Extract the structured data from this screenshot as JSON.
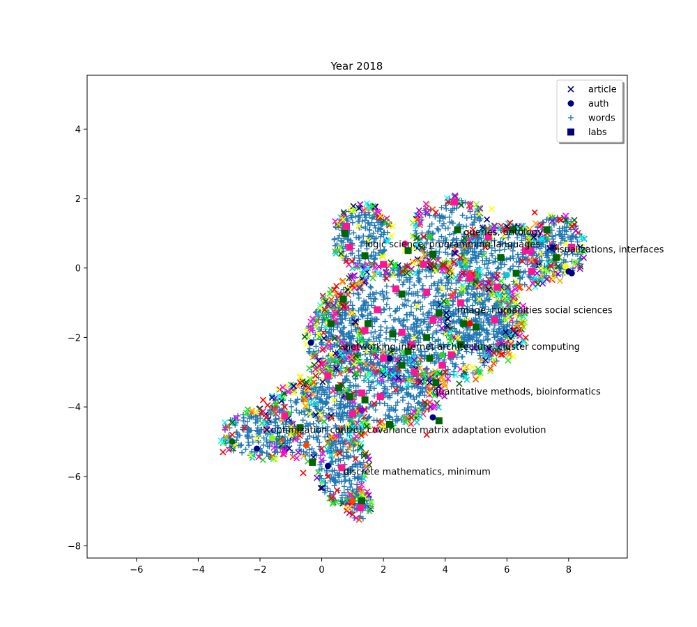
{
  "chart_data": {
    "type": "scatter",
    "title": "Year 2018",
    "xlabel": "",
    "ylabel": "",
    "xlim": [
      -7.6,
      9.9
    ],
    "ylim": [
      -8.35,
      5.55
    ],
    "xticks": [
      -6,
      -4,
      -2,
      0,
      2,
      4,
      6,
      8
    ],
    "yticks": [
      -8,
      -6,
      -4,
      -2,
      0,
      2,
      4
    ],
    "grid": false,
    "legend_position": "top-right",
    "legend": [
      {
        "name": "article",
        "marker": "x",
        "color": "#000080"
      },
      {
        "name": "auth",
        "marker": "circle",
        "color": "#000080"
      },
      {
        "name": "words",
        "marker": "plus",
        "color": "#1f77b4"
      },
      {
        "name": "labs",
        "marker": "square",
        "color": "#000080"
      }
    ],
    "annotations": [
      {
        "text": "queries, ontology",
        "x": 4.6,
        "y": 1.05
      },
      {
        "text": "logic science, programming languages",
        "x": 1.4,
        "y": 0.7
      },
      {
        "text": "visualizations, interfaces",
        "x": 7.45,
        "y": 0.55
      },
      {
        "text": "image, humanities social sciences",
        "x": 4.4,
        "y": -1.2
      },
      {
        "text": "networking internet architecture, cluster computing",
        "x": 0.75,
        "y": -2.25
      },
      {
        "text": "quantitative methods, bioinformatics",
        "x": 3.6,
        "y": -3.55
      },
      {
        "text": "optimization control, covariance matrix adaptation evolution",
        "x": -1.65,
        "y": -4.65
      },
      {
        "text": "discrete mathematics, minimum",
        "x": 0.7,
        "y": -5.85
      }
    ],
    "marker_palette": [
      "#ff0000",
      "#00ff00",
      "#ff00ff",
      "#ffa500",
      "#00ffff",
      "#7fff00",
      "#ff1493",
      "#ffff00",
      "#9400d3",
      "#00ced1",
      "#ff4500",
      "#32cd32",
      "#000080",
      "#006400"
    ],
    "series": [
      {
        "name": "article",
        "marker": "x",
        "points": [
          [
            -3.2,
            -5.3
          ],
          [
            -2.8,
            -5.1
          ],
          [
            -2.5,
            -4.6
          ],
          [
            -2.1,
            -4.9
          ],
          [
            -1.8,
            -4.3
          ],
          [
            -1.5,
            -5.5
          ],
          [
            -1.2,
            -4.0
          ],
          [
            -0.9,
            -3.6
          ],
          [
            -0.6,
            -5.9
          ],
          [
            -0.4,
            -4.2
          ],
          [
            -0.2,
            -3.1
          ],
          [
            -0.1,
            -1.9
          ],
          [
            0.1,
            -1.2
          ],
          [
            0.3,
            -2.5
          ],
          [
            0.5,
            -6.4
          ],
          [
            0.7,
            1.4
          ],
          [
            0.8,
            0.2
          ],
          [
            0.9,
            -6.9
          ],
          [
            1.0,
            -0.5
          ],
          [
            1.2,
            1.2
          ],
          [
            1.3,
            -1.8
          ],
          [
            1.5,
            0.8
          ],
          [
            1.7,
            -3.9
          ],
          [
            1.9,
            1.5
          ],
          [
            2.1,
            -0.3
          ],
          [
            2.3,
            1.2
          ],
          [
            2.5,
            -2.9
          ],
          [
            2.7,
            0.5
          ],
          [
            2.9,
            -4.3
          ],
          [
            3.1,
            -1.1
          ],
          [
            3.3,
            0.9
          ],
          [
            3.5,
            -3.6
          ],
          [
            3.7,
            1.6
          ],
          [
            3.9,
            -0.6
          ],
          [
            4.1,
            1.9
          ],
          [
            4.3,
            -2.4
          ],
          [
            4.5,
            0.3
          ],
          [
            4.7,
            -1.5
          ],
          [
            4.9,
            1.1
          ],
          [
            5.1,
            -0.9
          ],
          [
            5.3,
            0.6
          ],
          [
            5.5,
            1.7
          ],
          [
            5.7,
            -0.2
          ],
          [
            5.9,
            0.9
          ],
          [
            6.1,
            1.3
          ],
          [
            6.3,
            -0.4
          ],
          [
            6.5,
            0.2
          ],
          [
            6.7,
            1.1
          ],
          [
            6.9,
            1.6
          ],
          [
            7.1,
            0.4
          ],
          [
            7.3,
            1.0
          ],
          [
            7.5,
            -0.3
          ],
          [
            7.7,
            1.4
          ],
          [
            7.9,
            0.7
          ],
          [
            8.1,
            1.2
          ],
          [
            8.3,
            0.5
          ],
          [
            -1.9,
            -3.8
          ],
          [
            -1.0,
            -4.8
          ],
          [
            0.0,
            -5.2
          ],
          [
            0.4,
            -3.8
          ],
          [
            1.1,
            -5.5
          ],
          [
            2.0,
            -4.6
          ],
          [
            3.4,
            -4.8
          ],
          [
            -0.5,
            -2.2
          ],
          [
            0.6,
            -0.8
          ],
          [
            1.6,
            -2.2
          ],
          [
            2.4,
            -3.5
          ],
          [
            3.0,
            -2.0
          ],
          [
            4.0,
            -3.0
          ],
          [
            4.6,
            -2.9
          ],
          [
            1.0,
            -7.1
          ],
          [
            1.4,
            -6.6
          ],
          [
            0.2,
            -6.0
          ],
          [
            -2.3,
            -5.4
          ],
          [
            -2.9,
            -4.8
          ],
          [
            -1.4,
            -3.5
          ],
          [
            -0.7,
            -3.3
          ]
        ]
      },
      {
        "name": "auth",
        "marker": "circle",
        "points": [
          [
            -2.1,
            -5.2
          ],
          [
            -1.6,
            -4.9
          ],
          [
            -0.5,
            -5.1
          ],
          [
            -0.35,
            -2.15
          ],
          [
            2.7,
            0.7
          ],
          [
            3.5,
            0.9
          ],
          [
            3.6,
            -4.3
          ],
          [
            7.9,
            0.05
          ],
          [
            8.1,
            -0.15
          ],
          [
            8.0,
            -0.1
          ],
          [
            1.3,
            -4.1
          ],
          [
            -2.9,
            -5.0
          ],
          [
            0.2,
            -5.7
          ],
          [
            6.0,
            -0.2
          ],
          [
            4.8,
            -1.6
          ],
          [
            2.2,
            -2.6
          ],
          [
            1.0,
            -6.7
          ],
          [
            -1.1,
            -4.2
          ],
          [
            5.4,
            0.9
          ],
          [
            3.9,
            -2.5
          ]
        ]
      },
      {
        "name": "labs",
        "marker": "square",
        "points": [
          [
            4.3,
            1.9
          ],
          [
            4.4,
            1.1
          ],
          [
            0.8,
            1.2
          ],
          [
            0.75,
            1.0
          ],
          [
            0.9,
            0.6
          ],
          [
            1.4,
            0.35
          ],
          [
            2.0,
            0.1
          ],
          [
            2.8,
            0.5
          ],
          [
            3.3,
            0.1
          ],
          [
            3.6,
            0.4
          ],
          [
            5.4,
            0.9
          ],
          [
            6.2,
            1.1
          ],
          [
            6.8,
            -0.1
          ],
          [
            7.6,
            0.3
          ],
          [
            5.7,
            -0.55
          ],
          [
            6.3,
            -0.15
          ],
          [
            2.4,
            -0.6
          ],
          [
            2.6,
            -0.75
          ],
          [
            3.4,
            -0.7
          ],
          [
            0.7,
            -0.9
          ],
          [
            1.8,
            -1.2
          ],
          [
            3.8,
            -1.3
          ],
          [
            4.5,
            -1.0
          ],
          [
            5.0,
            -1.7
          ],
          [
            5.6,
            -1.5
          ],
          [
            4.6,
            -1.6
          ],
          [
            3.6,
            -1.5
          ],
          [
            1.5,
            -1.6
          ],
          [
            1.4,
            -1.8
          ],
          [
            2.3,
            -1.9
          ],
          [
            2.6,
            -1.85
          ],
          [
            3.4,
            -2.0
          ],
          [
            2.9,
            -2.2
          ],
          [
            2.8,
            -2.4
          ],
          [
            2.0,
            -2.6
          ],
          [
            2.6,
            -2.8
          ],
          [
            3.0,
            -3.0
          ],
          [
            3.5,
            -2.6
          ],
          [
            3.9,
            -2.8
          ],
          [
            3.7,
            -3.3
          ],
          [
            4.2,
            -2.5
          ],
          [
            4.5,
            -2.2
          ],
          [
            0.2,
            -3.1
          ],
          [
            0.55,
            -3.45
          ],
          [
            1.3,
            -3.6
          ],
          [
            1.4,
            -3.8
          ],
          [
            1.9,
            -3.7
          ],
          [
            0.9,
            -3.7
          ],
          [
            -1.2,
            -4.25
          ],
          [
            -0.7,
            -4.6
          ],
          [
            1.0,
            -4.2
          ],
          [
            3.8,
            -4.4
          ],
          [
            0.65,
            -5.75
          ],
          [
            1.3,
            -6.7
          ],
          [
            1.25,
            -6.9
          ],
          [
            -0.3,
            -5.6
          ],
          [
            4.8,
            -0.3
          ],
          [
            5.8,
            0.3
          ],
          [
            6.6,
            0.5
          ],
          [
            7.3,
            1.1
          ],
          [
            8.1,
            0.6
          ],
          [
            0.3,
            -1.6
          ],
          [
            1.1,
            -2.3
          ],
          [
            2.2,
            -4.5
          ]
        ]
      }
    ],
    "words_cloud": {
      "name": "words",
      "marker": "plus",
      "color": "#1f77b4",
      "regions": [
        {
          "cx": 3.2,
          "cy": -1.6,
          "rx": 3.2,
          "ry": 1.7,
          "n": 900
        },
        {
          "cx": 1.3,
          "cy": 0.9,
          "rx": 0.9,
          "ry": 0.9,
          "n": 180
        },
        {
          "cx": 4.2,
          "cy": 1.0,
          "rx": 1.2,
          "ry": 1.0,
          "n": 200
        },
        {
          "cx": 6.0,
          "cy": 0.3,
          "rx": 1.6,
          "ry": 0.9,
          "n": 260
        },
        {
          "cx": 7.6,
          "cy": 0.6,
          "rx": 0.9,
          "ry": 0.9,
          "n": 160
        },
        {
          "cx": 1.6,
          "cy": -3.5,
          "rx": 2.2,
          "ry": 1.1,
          "n": 420
        },
        {
          "cx": -0.2,
          "cy": -4.4,
          "rx": 1.6,
          "ry": 1.1,
          "n": 260
        },
        {
          "cx": -2.0,
          "cy": -4.8,
          "rx": 1.2,
          "ry": 0.7,
          "n": 160
        },
        {
          "cx": 0.7,
          "cy": -5.8,
          "rx": 0.8,
          "ry": 1.0,
          "n": 160
        },
        {
          "cx": 1.2,
          "cy": -6.8,
          "rx": 0.4,
          "ry": 0.45,
          "n": 50
        },
        {
          "cx": 0.4,
          "cy": -2.0,
          "rx": 0.9,
          "ry": 1.0,
          "n": 140
        },
        {
          "cx": 5.2,
          "cy": -1.4,
          "rx": 1.3,
          "ry": 1.0,
          "n": 200
        }
      ]
    }
  }
}
